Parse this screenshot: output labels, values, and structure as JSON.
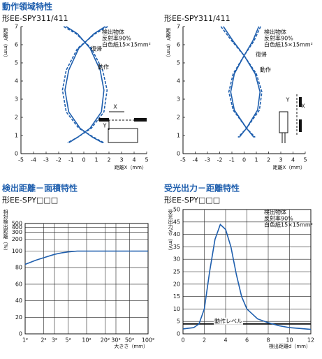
{
  "chart_data": [
    {
      "type": "line",
      "title": "動作領域特性",
      "subtitle": "形EE-SPY311/411",
      "xlabel": "距離X（mm）",
      "ylabel": "距離Y（mm）",
      "xlim": [
        -5,
        5
      ],
      "ylim": [
        0,
        7
      ],
      "xticks": [
        -5,
        -4,
        -3,
        -2,
        -1,
        0,
        1,
        2,
        3,
        4,
        5
      ],
      "yticks": [
        0,
        1,
        2,
        3,
        4,
        5,
        6,
        7
      ],
      "grid": false,
      "annotation": [
        "検出物体",
        "反射率90%",
        "白色紙15×15mm²"
      ],
      "inset_labels": [
        "X",
        "Y"
      ],
      "series": [
        {
          "name": "復帰",
          "color": "#1f5fae",
          "dash": true,
          "x": [
            -1.6,
            -0.6,
            0.6,
            1.5,
            1.85,
            1.6,
            0.6,
            -0.5,
            -1.3,
            null,
            1.9,
            0.9,
            -0.5,
            -1.4,
            -1.7,
            -1.4,
            -0.4,
            0.8,
            1.6
          ],
          "values": [
            7,
            6.6,
            5.8,
            4.6,
            3.5,
            2.3,
            1.4,
            0.9,
            0.6,
            null,
            7,
            6.6,
            5.8,
            4.6,
            3.5,
            2.3,
            1.4,
            0.9,
            0.6
          ]
        },
        {
          "name": "動作",
          "color": "#1f5fae",
          "x": [
            -1.4,
            -0.5,
            0.5,
            1.3,
            1.6,
            1.4,
            0.5,
            -0.5,
            -1.2,
            null,
            1.7,
            0.8,
            -0.4,
            -1.2,
            -1.5,
            -1.2,
            -0.3,
            0.7,
            1.5
          ],
          "values": [
            7,
            6.6,
            5.8,
            4.6,
            3.5,
            2.3,
            1.4,
            0.9,
            0.6,
            null,
            7,
            6.6,
            5.8,
            4.6,
            3.5,
            2.3,
            1.4,
            0.9,
            0.6
          ]
        }
      ]
    },
    {
      "type": "line",
      "subtitle": "形EE-SPY311/411",
      "xlabel": "距離X（mm）",
      "ylabel": "距離Y（mm）",
      "xlim": [
        -5,
        5
      ],
      "ylim": [
        0,
        7
      ],
      "xticks": [
        -5,
        -4,
        -3,
        -2,
        -1,
        0,
        1,
        2,
        3,
        4,
        5
      ],
      "yticks": [
        0,
        1,
        2,
        3,
        4,
        5,
        6,
        7
      ],
      "grid": false,
      "annotation": [
        "検出物体",
        "反射率90%",
        "白色紙15×15mm²"
      ],
      "inset_labels": [
        "Y",
        "X"
      ],
      "series": [
        {
          "name": "復帰",
          "color": "#1f5fae",
          "dash": true,
          "x": [
            -1.9,
            -1.0,
            0,
            1.0,
            1.45,
            1.25,
            0.2,
            -0.5,
            null,
            1.35,
            0.8,
            0,
            -0.9,
            -1.25,
            -0.9,
            0.2,
            0.9
          ],
          "values": [
            7,
            6.2,
            5.4,
            4.4,
            3.4,
            2.4,
            1.4,
            0.9,
            null,
            7,
            6.2,
            5.4,
            4.4,
            3.4,
            2.4,
            1.4,
            0.9
          ]
        },
        {
          "name": "動作",
          "color": "#1f5fae",
          "x": [
            -1.7,
            -0.9,
            0,
            0.9,
            1.3,
            1.1,
            0.2,
            -0.4,
            null,
            1.2,
            0.7,
            0,
            -0.8,
            -1.1,
            -0.8,
            0.2,
            0.8
          ],
          "values": [
            7,
            6.2,
            5.4,
            4.4,
            3.4,
            2.4,
            1.4,
            0.9,
            null,
            7,
            6.2,
            5.4,
            4.4,
            3.4,
            2.4,
            1.4,
            0.9
          ]
        }
      ]
    },
    {
      "type": "line",
      "title": "検出距離－面積特性",
      "subtitle": "形EE-SPY□□□",
      "xlabel": "大きさ（mm）",
      "ylabel": "相対検出距離（%）",
      "xscale": "log",
      "xlim": [
        1,
        100
      ],
      "xticks": [
        {
          "value": 1,
          "label": "1²"
        },
        {
          "value": 2,
          "label": "2²"
        },
        {
          "value": 3,
          "label": "3²"
        },
        {
          "value": 5,
          "label": "5²"
        },
        {
          "value": 10,
          "label": "10²"
        },
        {
          "value": 20,
          "label": "20²"
        },
        {
          "value": 30,
          "label": "30²"
        },
        {
          "value": 50,
          "label": "50²"
        },
        {
          "value": 100,
          "label": "100²"
        }
      ],
      "ylim": [
        0,
        500
      ],
      "ybreak": 100,
      "yticks": [
        0,
        20,
        40,
        60,
        80,
        100,
        200,
        300,
        400,
        500
      ],
      "grid": true,
      "x": [
        1,
        1.5,
        2,
        3,
        4,
        5,
        7,
        10,
        20,
        50,
        100
      ],
      "series": [
        {
          "color": "#1f5fae",
          "values": [
            84,
            89,
            92,
            96,
            98,
            99,
            100,
            100,
            100,
            100,
            100
          ]
        }
      ]
    },
    {
      "type": "line",
      "title": "受光出力－距離特性",
      "subtitle": "形EE-SPY□□□",
      "xlabel": "検出距離d（mm）",
      "ylabel": "受光出力Vp（mV）",
      "xlim": [
        0,
        12
      ],
      "xticks": [
        0,
        2,
        4,
        6,
        8,
        10,
        12
      ],
      "ylim": [
        0,
        50
      ],
      "yticks": [
        0,
        5,
        10,
        15,
        20,
        25,
        30,
        35,
        40,
        45,
        50
      ],
      "grid": true,
      "annotation": [
        "検出物体",
        "反射率90%",
        "白色紙15×15mm²"
      ],
      "reference_line": {
        "value": 4,
        "label": "動作レベル"
      },
      "x": [
        0,
        1,
        1.5,
        2,
        2.5,
        3,
        3.5,
        4,
        4.5,
        5,
        5.5,
        6,
        7,
        8,
        9,
        10,
        12
      ],
      "series": [
        {
          "color": "#1f5fae",
          "values": [
            2,
            2.5,
            4,
            10,
            25,
            38,
            44,
            42,
            35,
            24,
            15,
            10,
            6,
            4.5,
            3.3,
            2.5,
            1.8
          ]
        }
      ]
    }
  ]
}
